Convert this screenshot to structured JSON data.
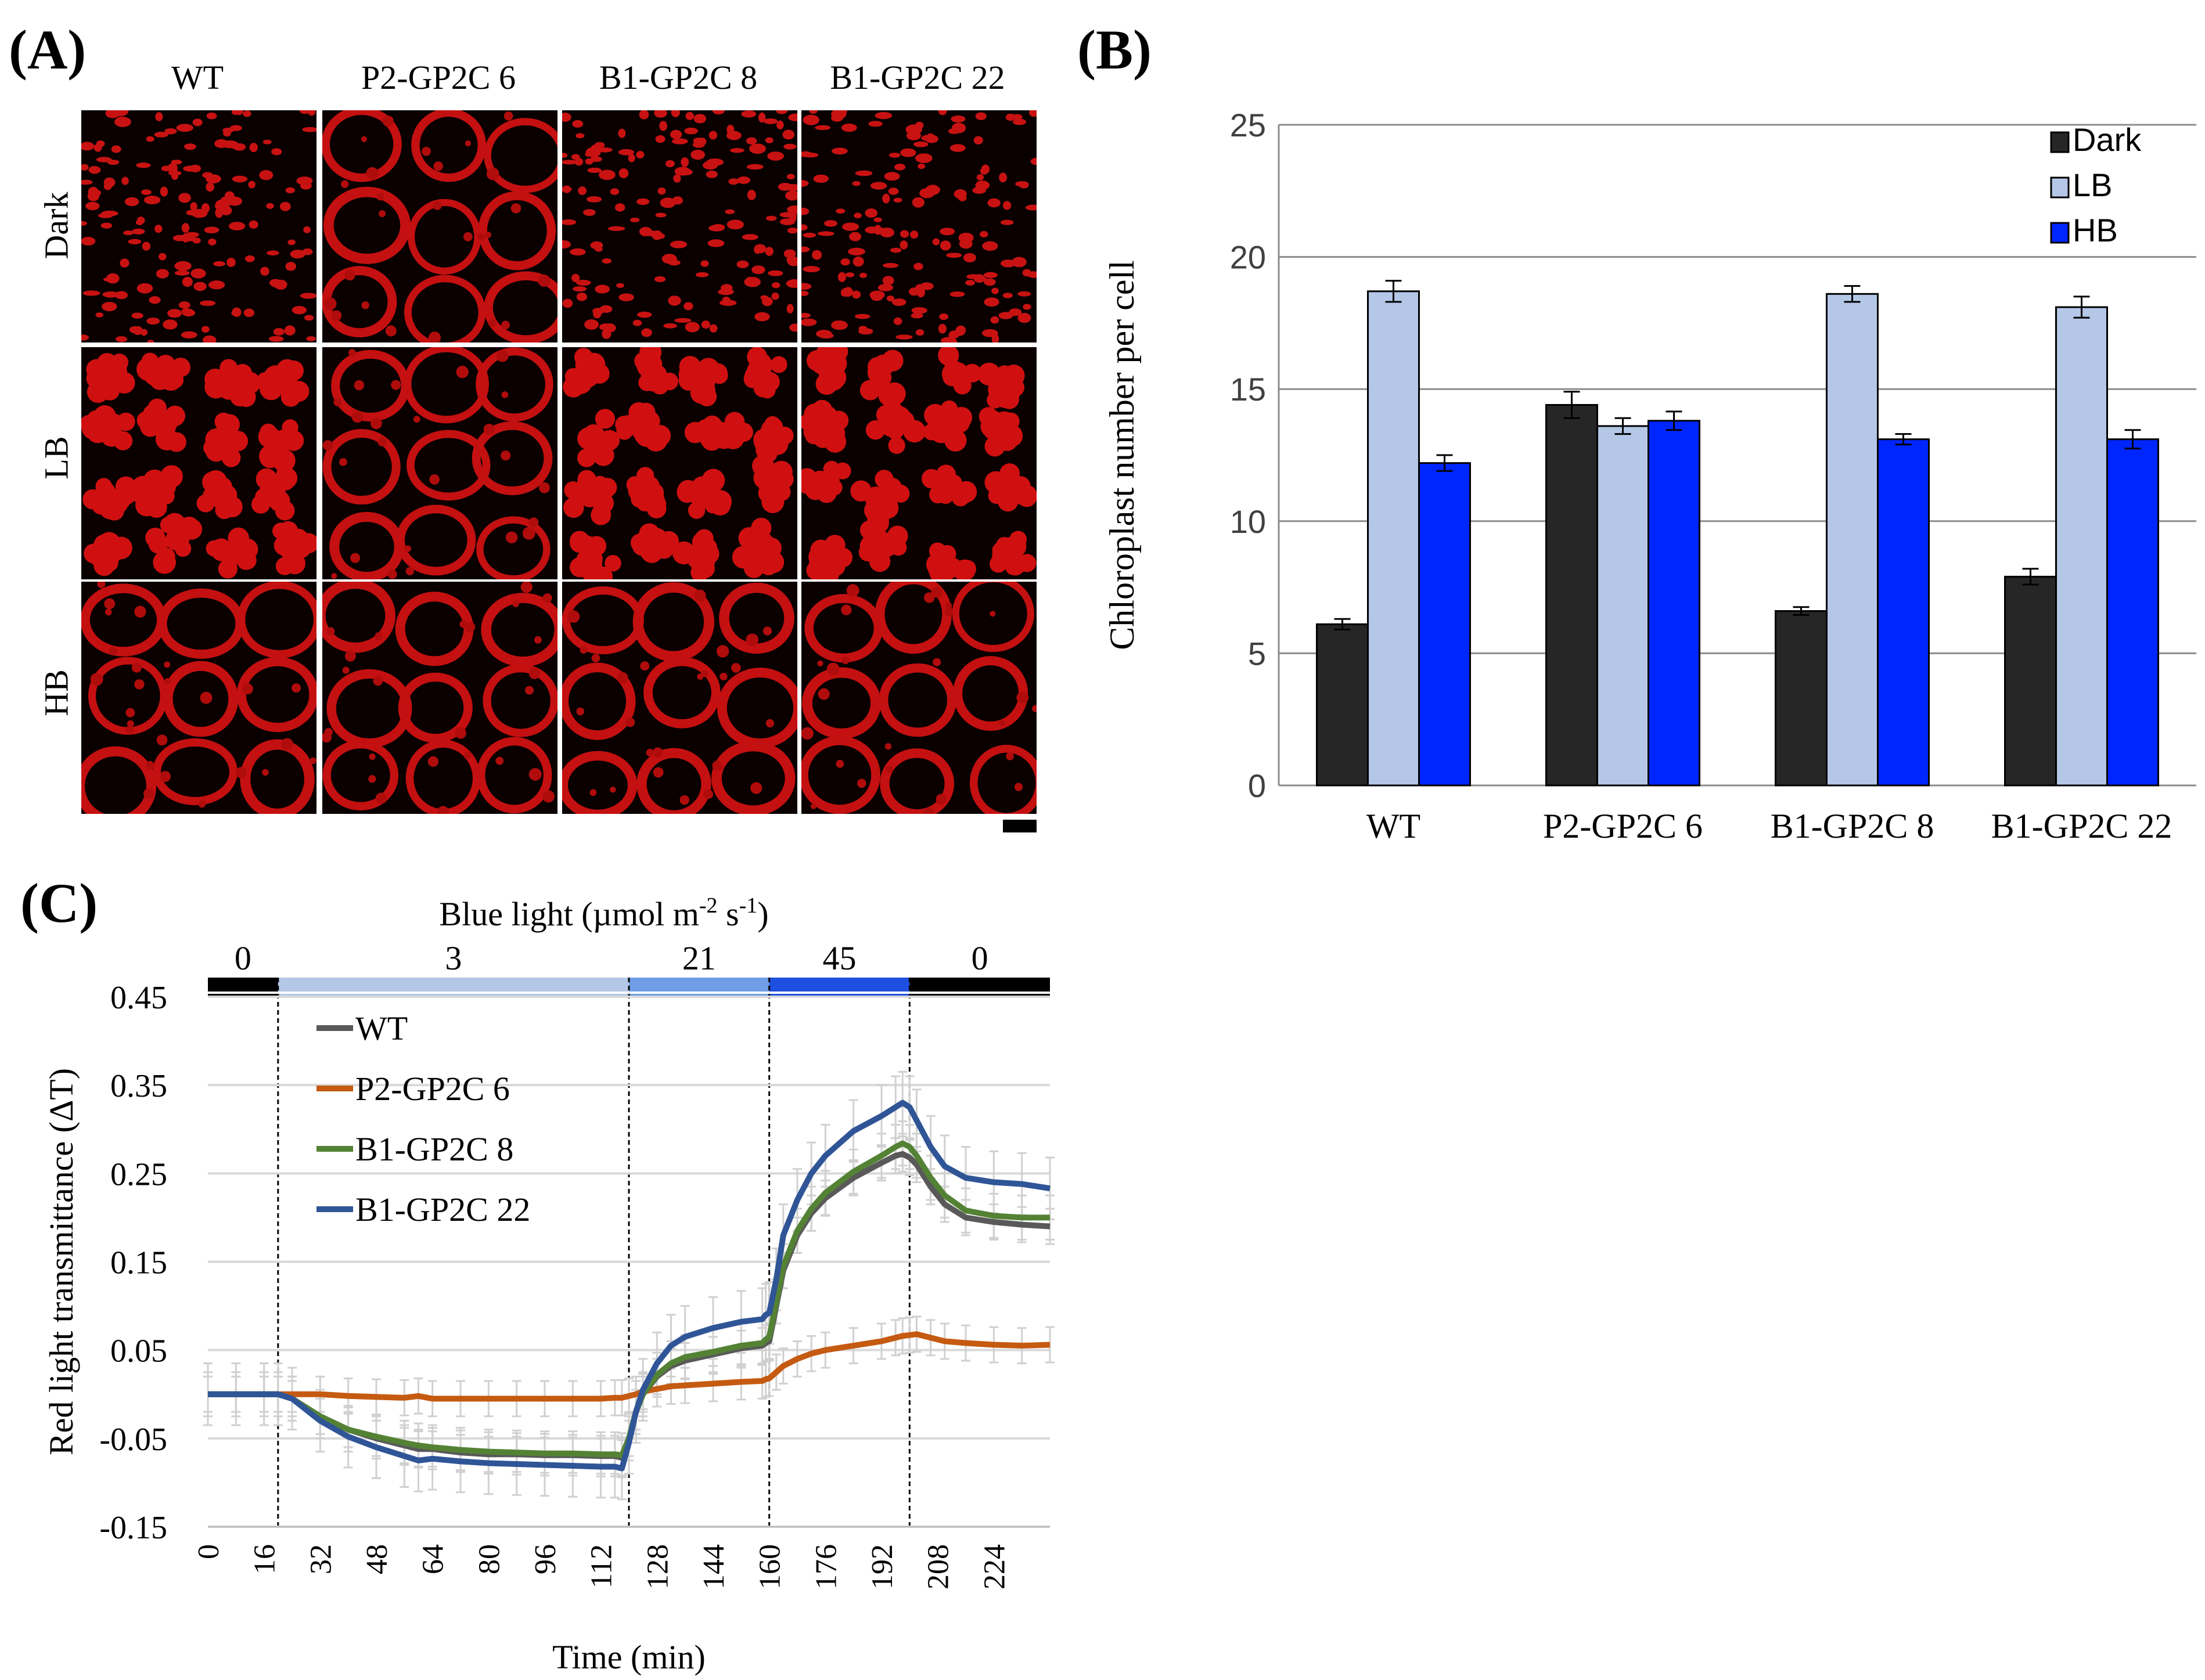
{
  "panel_a": {
    "label": "(A)",
    "columns": [
      "WT",
      "P2-GP2C 6",
      "B1-GP2C 8",
      "B1-GP2C 22"
    ],
    "rows": [
      "Dark",
      "LB",
      "HB"
    ],
    "cells": [
      [
        "dark-spots",
        "dark-rings",
        "dark-spots",
        "dark-spots"
      ],
      [
        "lb-clusters",
        "lb-rings",
        "lb-clusters",
        "lb-clusters"
      ],
      [
        "hb-rings",
        "hb-rings",
        "hb-rings",
        "hb-rings"
      ]
    ]
  },
  "panel_b": {
    "label": "(B)",
    "colors": {
      "Dark": "#262626",
      "LB": "#b4c7e7",
      "HB": "#0026ff"
    }
  },
  "panel_c": {
    "label": "(C)",
    "light_title": "Blue light (µmol m",
    "light_title_sup1": "-2",
    "light_title_mid": " s",
    "light_title_sup2": "-1",
    "light_title_end": ")",
    "light_segments": [
      {
        "level": "0",
        "start": 0,
        "end": 20,
        "color": "#000000"
      },
      {
        "level": "3",
        "start": 20,
        "end": 120,
        "color": "#b4c7e7"
      },
      {
        "level": "21",
        "start": 120,
        "end": 160,
        "color": "#6f9de6"
      },
      {
        "level": "45",
        "start": 160,
        "end": 200,
        "color": "#1f4fe0"
      },
      {
        "level": "0",
        "start": 200,
        "end": 240,
        "color": "#000000"
      }
    ],
    "colors": {
      "WT": "#595959",
      "P2-GP2C 6": "#c55a11",
      "B1-GP2C 8": "#548235",
      "B1-GP2C 22": "#2f5597",
      "error": "#d0d0d0"
    }
  },
  "chart_data": [
    {
      "type": "bar",
      "title": "",
      "xlabel": "",
      "ylabel": "Chloroplast number per cell",
      "ylim": [
        0,
        25
      ],
      "yticks": [
        "0",
        "5",
        "10",
        "15",
        "20",
        "25"
      ],
      "categories": [
        "WT",
        "P2-GP2C 6",
        "B1-GP2C 8",
        "B1-GP2C 22"
      ],
      "legend": [
        "Dark",
        "LB",
        "HB"
      ],
      "legend_position": "top-right",
      "grid": true,
      "series": [
        {
          "name": "Dark",
          "values": [
            6.1,
            14.4,
            6.6,
            7.9
          ],
          "errors": [
            0.2,
            0.5,
            0.15,
            0.3
          ]
        },
        {
          "name": "LB",
          "values": [
            18.7,
            13.6,
            18.6,
            18.1
          ],
          "errors": [
            0.4,
            0.3,
            0.3,
            0.4
          ]
        },
        {
          "name": "HB",
          "values": [
            12.2,
            13.8,
            13.1,
            13.1
          ],
          "errors": [
            0.3,
            0.35,
            0.2,
            0.35
          ]
        }
      ]
    },
    {
      "type": "line",
      "title": "",
      "xlabel": "Time (min)",
      "ylabel": "Red light transmittance (ΔT)",
      "xlim": [
        0,
        240
      ],
      "ylim": [
        -0.15,
        0.45
      ],
      "xticks": [
        "0",
        "16",
        "32",
        "48",
        "64",
        "80",
        "96",
        "112",
        "128",
        "144",
        "160",
        "176",
        "192",
        "208",
        "224"
      ],
      "yticks": [
        "-0.15",
        "-0.05",
        "0.05",
        "0.15",
        "0.25",
        "0.35",
        "0.45"
      ],
      "legend_position": "top-left",
      "grid": true,
      "x": [
        0,
        8,
        16,
        20,
        24,
        32,
        40,
        48,
        56,
        60,
        64,
        72,
        80,
        88,
        96,
        104,
        112,
        116,
        118,
        120,
        122,
        124,
        128,
        132,
        136,
        144,
        152,
        158,
        159,
        160,
        162,
        164,
        168,
        172,
        176,
        184,
        192,
        196,
        198,
        200,
        202,
        206,
        210,
        216,
        224,
        232,
        240
      ],
      "series": [
        {
          "name": "WT",
          "errors": 0.02,
          "values": [
            0,
            0,
            0,
            0,
            -0.005,
            -0.025,
            -0.04,
            -0.05,
            -0.058,
            -0.062,
            -0.062,
            -0.066,
            -0.068,
            -0.068,
            -0.069,
            -0.069,
            -0.07,
            -0.07,
            -0.072,
            -0.05,
            -0.02,
            0.0,
            0.02,
            0.032,
            0.038,
            0.045,
            0.052,
            0.055,
            0.058,
            0.06,
            0.1,
            0.14,
            0.18,
            0.205,
            0.222,
            0.245,
            0.262,
            0.27,
            0.272,
            0.268,
            0.26,
            0.235,
            0.215,
            0.2,
            0.195,
            0.192,
            0.19
          ]
        },
        {
          "name": "P2-GP2C 6",
          "errors": 0.02,
          "values": [
            0,
            0,
            0,
            0,
            0,
            0,
            -0.002,
            -0.003,
            -0.004,
            -0.002,
            -0.005,
            -0.005,
            -0.005,
            -0.005,
            -0.005,
            -0.005,
            -0.005,
            -0.004,
            -0.004,
            -0.002,
            0.0,
            0.003,
            0.006,
            0.009,
            0.01,
            0.012,
            0.014,
            0.015,
            0.017,
            0.018,
            0.025,
            0.032,
            0.04,
            0.046,
            0.05,
            0.055,
            0.06,
            0.064,
            0.066,
            0.067,
            0.068,
            0.064,
            0.06,
            0.058,
            0.056,
            0.055,
            0.056
          ]
        },
        {
          "name": "B1-GP2C 8",
          "errors": 0.025,
          "values": [
            0,
            0,
            0,
            0,
            -0.005,
            -0.025,
            -0.04,
            -0.048,
            -0.055,
            -0.058,
            -0.06,
            -0.063,
            -0.065,
            -0.066,
            -0.067,
            -0.067,
            -0.068,
            -0.068,
            -0.069,
            -0.05,
            -0.02,
            0.0,
            0.022,
            0.035,
            0.042,
            0.048,
            0.055,
            0.058,
            0.062,
            0.065,
            0.105,
            0.145,
            0.185,
            0.21,
            0.228,
            0.252,
            0.27,
            0.28,
            0.284,
            0.28,
            0.27,
            0.245,
            0.225,
            0.208,
            0.202,
            0.2,
            0.2
          ]
        },
        {
          "name": "B1-GP2C 22",
          "errors": 0.035,
          "values": [
            0,
            0,
            0,
            0,
            -0.005,
            -0.03,
            -0.048,
            -0.06,
            -0.07,
            -0.075,
            -0.073,
            -0.076,
            -0.078,
            -0.079,
            -0.08,
            -0.081,
            -0.082,
            -0.082,
            -0.084,
            -0.055,
            -0.02,
            0.005,
            0.035,
            0.055,
            0.065,
            0.075,
            0.082,
            0.085,
            0.09,
            0.092,
            0.13,
            0.18,
            0.22,
            0.25,
            0.27,
            0.298,
            0.315,
            0.325,
            0.33,
            0.325,
            0.31,
            0.28,
            0.258,
            0.245,
            0.24,
            0.238,
            0.233
          ]
        }
      ]
    }
  ]
}
